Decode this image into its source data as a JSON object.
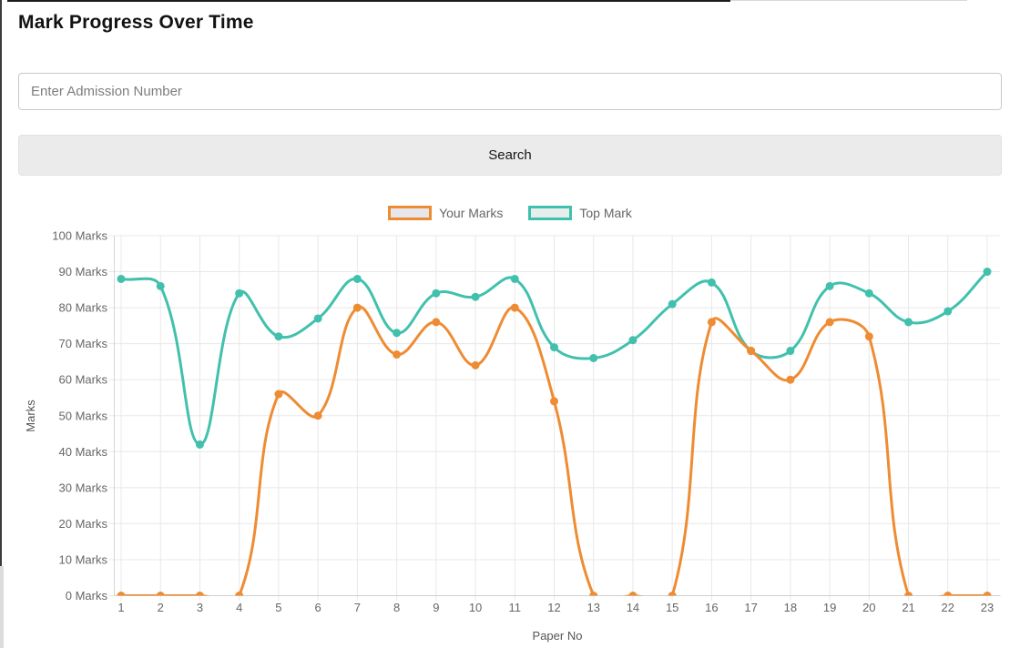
{
  "page": {
    "title": "Mark Progress Over Time"
  },
  "search": {
    "placeholder": "Enter Admission Number",
    "button_label": "Search"
  },
  "chart_data": {
    "type": "line",
    "title": "",
    "xlabel": "Paper No",
    "ylabel": "Marks",
    "x": [
      "1",
      "2",
      "3",
      "4",
      "5",
      "6",
      "7",
      "8",
      "9",
      "10",
      "11",
      "12",
      "13",
      "14",
      "15",
      "16",
      "17",
      "18",
      "19",
      "20",
      "21",
      "22",
      "23"
    ],
    "series": [
      {
        "name": "Your Marks",
        "color": "#EE8C33",
        "fill": "#E7E7EB",
        "values": [
          0,
          0,
          0,
          0,
          56,
          50,
          80,
          67,
          76,
          64,
          80,
          54,
          0,
          0,
          0,
          76,
          68,
          60,
          76,
          72,
          0,
          0,
          0
        ]
      },
      {
        "name": "Top Mark",
        "color": "#41C1AD",
        "fill": "#E6EFEC",
        "values": [
          88,
          86,
          42,
          84,
          72,
          77,
          88,
          73,
          84,
          83,
          88,
          69,
          66,
          71,
          81,
          87,
          68,
          68,
          86,
          84,
          76,
          79,
          90
        ]
      }
    ],
    "ylim": [
      0,
      100
    ],
    "ytick_step": 10,
    "ytick_suffix": " Marks",
    "grid": true,
    "legend_position": "top",
    "line_tension": 0.4
  }
}
